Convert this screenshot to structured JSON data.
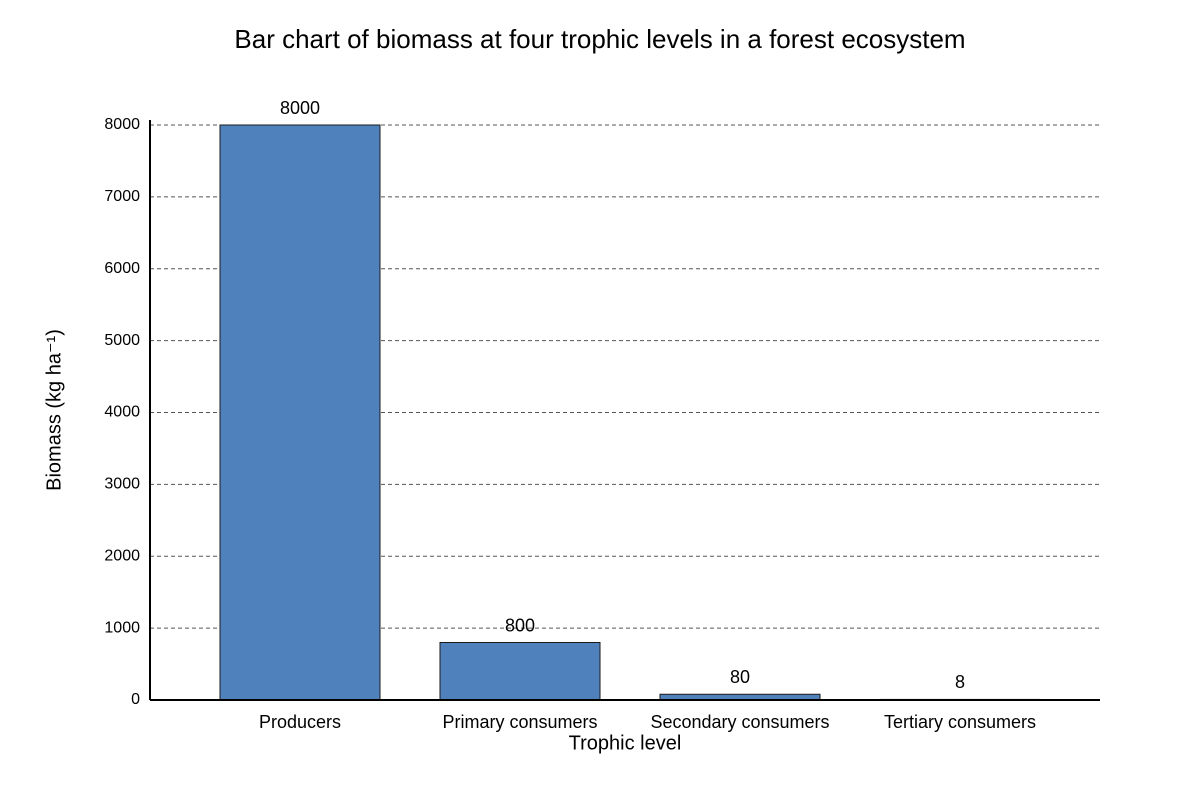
{
  "chart_data": {
    "type": "bar",
    "title": "Bar chart of biomass at four trophic levels in a forest ecosystem",
    "x_label": "Trophic level",
    "y_label": "Biomass (kg ha⁻¹)",
    "categories": [
      "Producers",
      "Primary consumers",
      "Secondary consumers",
      "Tertiary consumers"
    ],
    "values": [
      8000,
      800,
      80,
      8
    ],
    "color": "#4f81bd",
    "ylim": [
      0,
      8000
    ],
    "yticks": [
      0,
      1000,
      2000,
      3000,
      4000,
      5000,
      6000,
      7000,
      8000
    ],
    "grid": true
  }
}
